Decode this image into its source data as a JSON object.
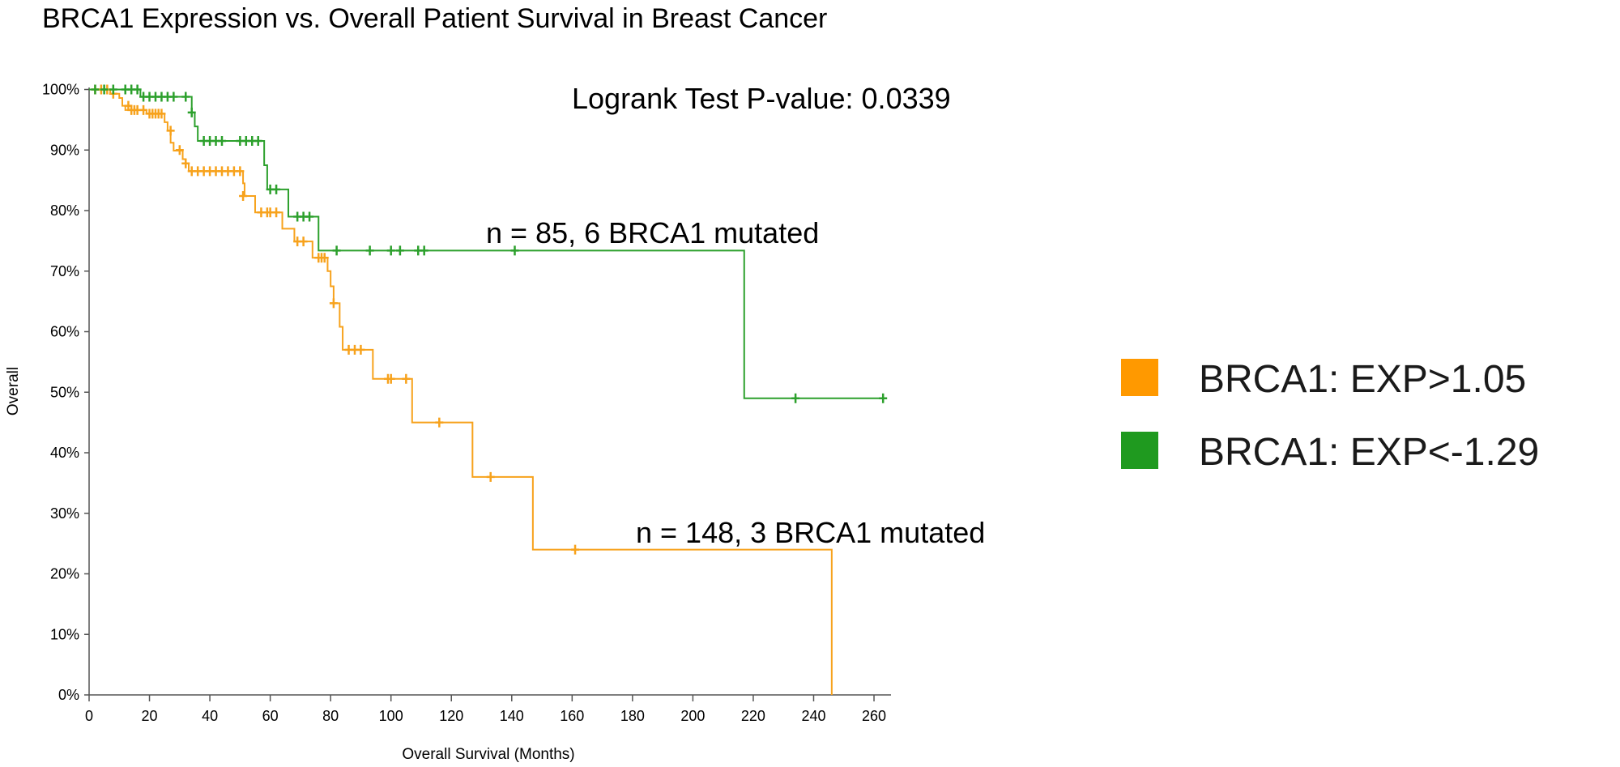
{
  "chart_data": {
    "type": "line",
    "title": "BRCA1 Expression vs. Overall Patient Survival in Breast Cancer",
    "xlabel": "Overall Survival (Months)",
    "ylabel": "Overall",
    "xlim": [
      0,
      265
    ],
    "ylim": [
      0,
      100
    ],
    "x_ticks": [
      0,
      20,
      40,
      60,
      80,
      100,
      120,
      140,
      160,
      180,
      200,
      220,
      240,
      260
    ],
    "y_ticks": [
      0,
      10,
      20,
      30,
      40,
      50,
      60,
      70,
      80,
      90,
      100
    ],
    "y_tick_labels": [
      "0%",
      "10%",
      "20%",
      "30%",
      "40%",
      "50%",
      "60%",
      "70%",
      "80%",
      "90%",
      "100%"
    ],
    "grid": false,
    "legend_position": "right",
    "annotations": {
      "pvalue": "Logrank Test P-value: 0.0339",
      "green_n": "n = 85, 6 BRCA1 mutated",
      "orange_n": "n = 148, 3 BRCA1 mutated"
    },
    "series": [
      {
        "name": "BRCA1: EXP>1.05",
        "color": "#f7a21c",
        "legend_color": "#ff9900",
        "steps": [
          [
            0,
            100
          ],
          [
            7,
            99.3
          ],
          [
            10,
            98.6
          ],
          [
            11,
            97.3
          ],
          [
            12,
            96.6
          ],
          [
            19,
            96.0
          ],
          [
            25,
            94.6
          ],
          [
            26,
            93.2
          ],
          [
            27,
            91.2
          ],
          [
            28,
            89.9
          ],
          [
            31,
            88.5
          ],
          [
            32,
            87.8
          ],
          [
            33,
            86.5
          ],
          [
            51,
            84.5
          ],
          [
            51.5,
            82.4
          ],
          [
            55,
            79.7
          ],
          [
            64,
            77.0
          ],
          [
            68,
            74.9
          ],
          [
            74,
            72.2
          ],
          [
            79,
            70.0
          ],
          [
            80,
            67.5
          ],
          [
            81,
            64.7
          ],
          [
            83,
            60.8
          ],
          [
            84,
            57.0
          ],
          [
            94,
            52.2
          ],
          [
            107,
            45.0
          ],
          [
            127,
            36.0
          ],
          [
            147,
            24.0
          ],
          [
            246,
            0
          ]
        ],
        "end_x": 246,
        "censored": [
          [
            2,
            100
          ],
          [
            4,
            100
          ],
          [
            6,
            100
          ],
          [
            8,
            99.3
          ],
          [
            13,
            97.3
          ],
          [
            14,
            96.6
          ],
          [
            15,
            96.6
          ],
          [
            16,
            96.6
          ],
          [
            18,
            96.6
          ],
          [
            20,
            96.0
          ],
          [
            21,
            96.0
          ],
          [
            22,
            96.0
          ],
          [
            23,
            96.0
          ],
          [
            24,
            96.0
          ],
          [
            27,
            93.2
          ],
          [
            30,
            90.0
          ],
          [
            32,
            87.8
          ],
          [
            34,
            86.5
          ],
          [
            36,
            86.5
          ],
          [
            38,
            86.5
          ],
          [
            40,
            86.5
          ],
          [
            42,
            86.5
          ],
          [
            44,
            86.5
          ],
          [
            46,
            86.5
          ],
          [
            48,
            86.5
          ],
          [
            50,
            86.5
          ],
          [
            51,
            82.4
          ],
          [
            57,
            79.7
          ],
          [
            59,
            79.7
          ],
          [
            60,
            79.7
          ],
          [
            62,
            79.7
          ],
          [
            69,
            74.9
          ],
          [
            71,
            74.9
          ],
          [
            76,
            72.2
          ],
          [
            77,
            72.2
          ],
          [
            78,
            72.2
          ],
          [
            81,
            64.7
          ],
          [
            86,
            57.0
          ],
          [
            88,
            57.0
          ],
          [
            90,
            57.0
          ],
          [
            99,
            52.2
          ],
          [
            100,
            52.2
          ],
          [
            105,
            52.2
          ],
          [
            116,
            45.0
          ],
          [
            133,
            36.0
          ],
          [
            161,
            24.0
          ]
        ]
      },
      {
        "name": "BRCA1: EXP<-1.29",
        "color": "#2ca02c",
        "legend_color": "#1f9a1f",
        "steps": [
          [
            0,
            100
          ],
          [
            17,
            98.8
          ],
          [
            34,
            96.2
          ],
          [
            35,
            93.9
          ],
          [
            36,
            91.5
          ],
          [
            58,
            87.5
          ],
          [
            59,
            83.5
          ],
          [
            66,
            79.0
          ],
          [
            76,
            73.4
          ],
          [
            217,
            49.0
          ]
        ],
        "end_x": 263,
        "censored": [
          [
            2,
            100
          ],
          [
            5,
            100
          ],
          [
            8,
            100
          ],
          [
            12,
            100
          ],
          [
            14,
            100
          ],
          [
            16,
            100
          ],
          [
            18,
            98.8
          ],
          [
            20,
            98.8
          ],
          [
            22,
            98.8
          ],
          [
            24,
            98.8
          ],
          [
            26,
            98.8
          ],
          [
            28,
            98.8
          ],
          [
            32,
            98.8
          ],
          [
            34,
            96.2
          ],
          [
            38,
            91.5
          ],
          [
            40,
            91.5
          ],
          [
            42,
            91.5
          ],
          [
            44,
            91.5
          ],
          [
            50,
            91.5
          ],
          [
            52,
            91.5
          ],
          [
            54,
            91.5
          ],
          [
            56,
            91.5
          ],
          [
            60,
            83.5
          ],
          [
            62,
            83.5
          ],
          [
            69,
            79.0
          ],
          [
            71,
            79.0
          ],
          [
            73,
            79.0
          ],
          [
            82,
            73.4
          ],
          [
            93,
            73.4
          ],
          [
            100,
            73.4
          ],
          [
            103,
            73.4
          ],
          [
            109,
            73.4
          ],
          [
            111,
            73.4
          ],
          [
            141,
            73.4
          ],
          [
            234,
            49.0
          ],
          [
            263,
            49.0
          ]
        ]
      }
    ]
  }
}
